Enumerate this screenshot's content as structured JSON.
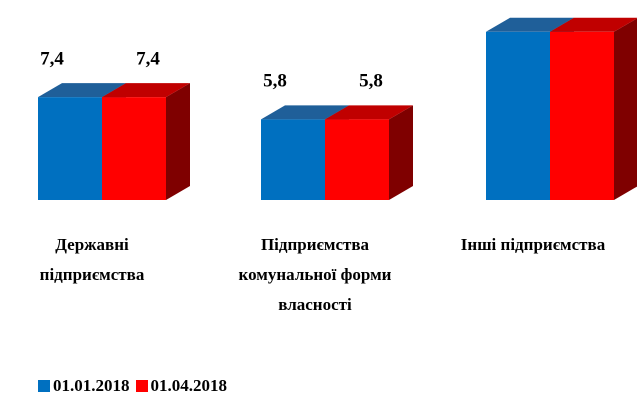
{
  "chart_data": {
    "type": "bar3d",
    "categories": [
      "Державні підприємства",
      "Підприємства комунальної форми власності",
      "Інші підприємства"
    ],
    "series": [
      {
        "name": "01.01.2018",
        "color": "#0070c0",
        "values": [
          7.4,
          5.8,
          12.1
        ],
        "value_labels": [
          "7,4",
          "5,8",
          null
        ]
      },
      {
        "name": "01.04.2018",
        "color": "#ff0000",
        "values": [
          7.4,
          5.8,
          12.1
        ],
        "value_labels": [
          "7,4",
          "5,8",
          null
        ]
      }
    ],
    "legend": "bottom-left"
  }
}
